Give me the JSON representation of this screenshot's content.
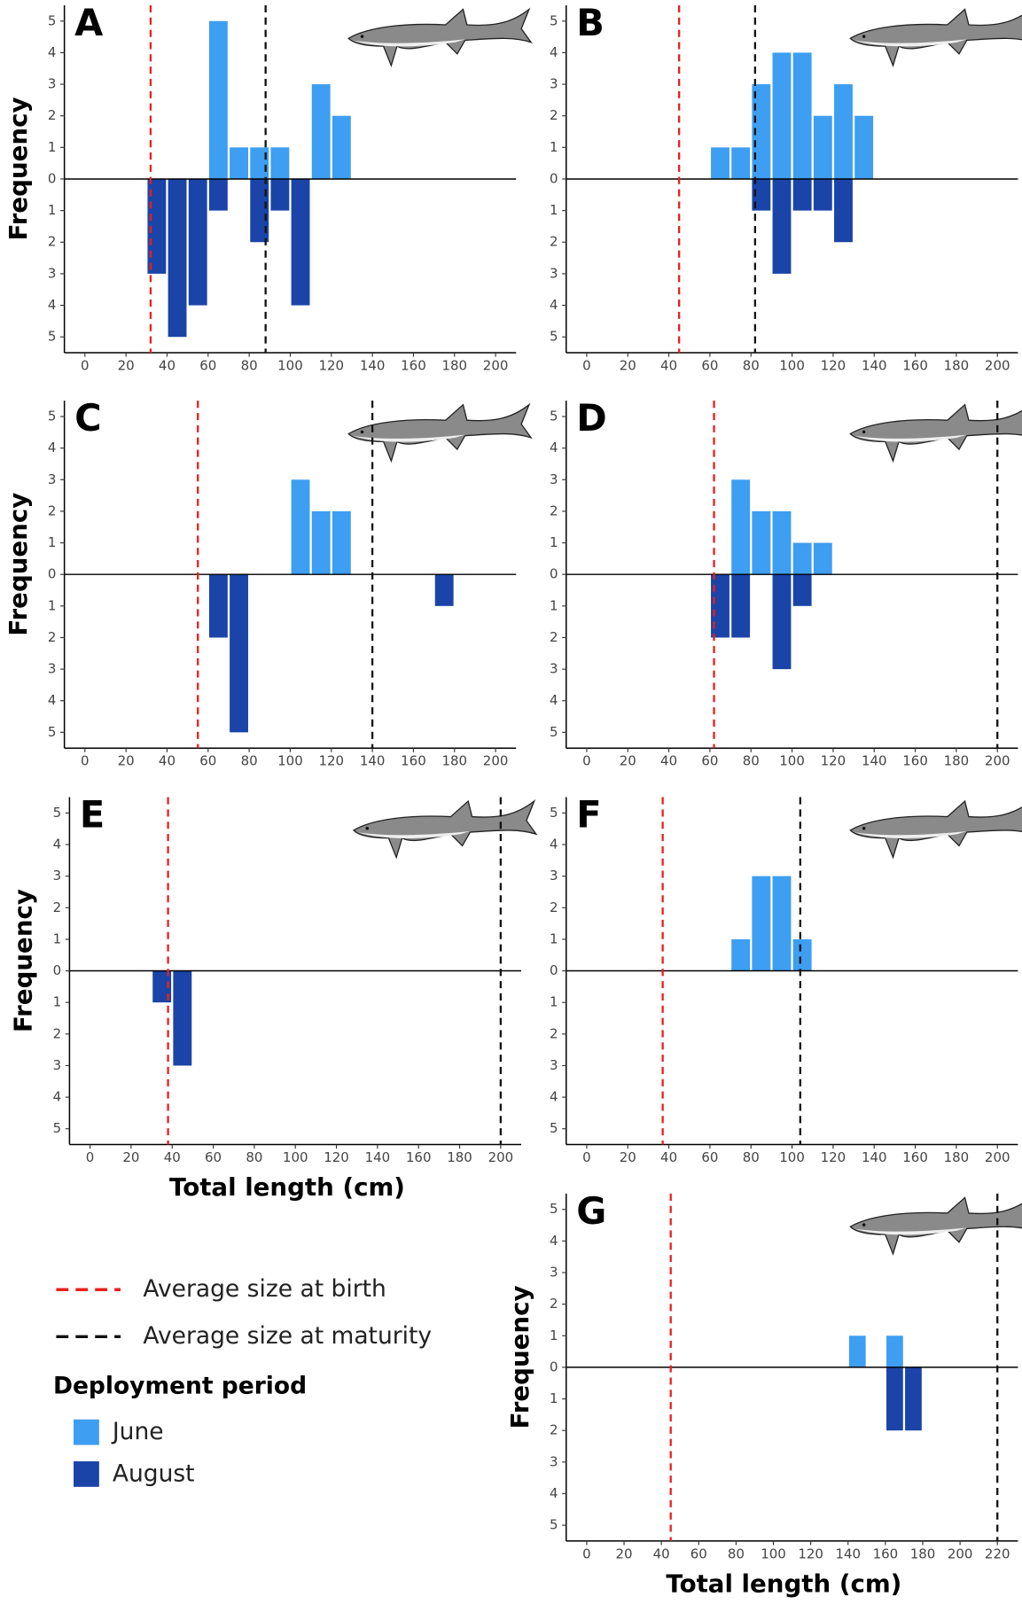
{
  "chart_data": [
    {
      "type": "histogram",
      "label": "A",
      "ylabel": "Frequency",
      "bins": [
        30,
        40,
        50,
        60,
        70,
        80,
        90,
        100,
        110,
        120,
        130
      ],
      "series": [
        {
          "name": "June",
          "color": "#3d9ef2",
          "values": [
            0,
            0,
            0,
            5,
            1,
            1,
            1,
            0,
            3,
            2
          ]
        },
        {
          "name": "August",
          "color": "#1a44a8",
          "values": [
            -3,
            -5,
            -4,
            -1,
            0,
            -2,
            -1,
            -4,
            0,
            0
          ]
        }
      ],
      "birth_size": 32,
      "maturity_size": 88,
      "xlim": [
        -10,
        210
      ],
      "xticks": [
        0,
        20,
        40,
        60,
        80,
        100,
        120,
        140,
        160,
        180,
        200
      ],
      "ylim": [
        -5.5,
        5.5
      ],
      "yticks": [
        {
          "value": -5,
          "label": "5"
        },
        {
          "value": -4,
          "label": "4"
        },
        {
          "value": -3,
          "label": "3"
        },
        {
          "value": -2,
          "label": "2"
        },
        {
          "value": -1,
          "label": "1"
        },
        0,
        1,
        2,
        3,
        4,
        5
      ]
    },
    {
      "type": "histogram",
      "label": "B",
      "bins": [
        60,
        70,
        80,
        90,
        100,
        110,
        120,
        130,
        140
      ],
      "series": [
        {
          "name": "June",
          "color": "#3d9ef2",
          "values": [
            1,
            1,
            3,
            4,
            4,
            2,
            3,
            2
          ]
        },
        {
          "name": "August",
          "color": "#1a44a8",
          "values": [
            0,
            0,
            -1,
            -3,
            -1,
            -1,
            -2,
            0
          ]
        }
      ],
      "birth_size": 45,
      "maturity_size": 82,
      "xlim": [
        -10,
        210
      ],
      "xticks": [
        0,
        20,
        40,
        60,
        80,
        100,
        120,
        140,
        160,
        180,
        200
      ],
      "ylim": [
        -5.5,
        5.5
      ],
      "yticks": [
        {
          "value": -5,
          "label": "5"
        },
        {
          "value": -4,
          "label": "4"
        },
        {
          "value": -3,
          "label": "3"
        },
        {
          "value": -2,
          "label": "2"
        },
        {
          "value": -1,
          "label": "1"
        },
        0,
        1,
        2,
        3,
        4,
        5
      ]
    },
    {
      "type": "histogram",
      "label": "C",
      "ylabel": "Frequency",
      "bins": [
        60,
        70,
        80,
        90,
        100,
        110,
        120,
        130,
        140,
        150,
        160,
        170,
        180
      ],
      "series": [
        {
          "name": "June",
          "color": "#3d9ef2",
          "values": [
            0,
            0,
            0,
            0,
            3,
            2,
            2,
            0,
            0,
            0,
            0,
            0
          ]
        },
        {
          "name": "August",
          "color": "#1a44a8",
          "values": [
            -2,
            -5,
            0,
            0,
            0,
            0,
            0,
            0,
            0,
            0,
            0,
            -1
          ]
        }
      ],
      "birth_size": 55,
      "maturity_size": 140,
      "xlim": [
        -10,
        210
      ],
      "xticks": [
        0,
        20,
        40,
        60,
        80,
        100,
        120,
        140,
        160,
        180,
        200
      ],
      "ylim": [
        -5.5,
        5.5
      ],
      "yticks": [
        {
          "value": -5,
          "label": "5"
        },
        {
          "value": -4,
          "label": "4"
        },
        {
          "value": -3,
          "label": "3"
        },
        {
          "value": -2,
          "label": "2"
        },
        {
          "value": -1,
          "label": "1"
        },
        0,
        1,
        2,
        3,
        4,
        5
      ]
    },
    {
      "type": "histogram",
      "label": "D",
      "bins": [
        60,
        70,
        80,
        90,
        100,
        110,
        120
      ],
      "series": [
        {
          "name": "June",
          "color": "#3d9ef2",
          "values": [
            0,
            3,
            2,
            2,
            1,
            1
          ]
        },
        {
          "name": "August",
          "color": "#1a44a8",
          "values": [
            -2,
            -2,
            0,
            -3,
            -1,
            0
          ]
        }
      ],
      "birth_size": 62,
      "maturity_size": 200,
      "xlim": [
        -10,
        210
      ],
      "xticks": [
        0,
        20,
        40,
        60,
        80,
        100,
        120,
        140,
        160,
        180,
        200
      ],
      "ylim": [
        -5.5,
        5.5
      ],
      "yticks": [
        {
          "value": -5,
          "label": "5"
        },
        {
          "value": -4,
          "label": "4"
        },
        {
          "value": -3,
          "label": "3"
        },
        {
          "value": -2,
          "label": "2"
        },
        {
          "value": -1,
          "label": "1"
        },
        0,
        1,
        2,
        3,
        4,
        5
      ]
    },
    {
      "type": "histogram",
      "label": "E",
      "ylabel": "Frequency",
      "xlabel": "Total length (cm)",
      "bins": [
        30,
        40,
        50
      ],
      "series": [
        {
          "name": "June",
          "color": "#3d9ef2",
          "values": [
            0,
            0
          ]
        },
        {
          "name": "August",
          "color": "#1a44a8",
          "values": [
            -1,
            -3
          ]
        }
      ],
      "birth_size": 38,
      "maturity_size": 200,
      "xlim": [
        -10,
        210
      ],
      "xticks": [
        0,
        20,
        40,
        60,
        80,
        100,
        120,
        140,
        160,
        180,
        200
      ],
      "ylim": [
        -5.5,
        5.5
      ],
      "yticks": [
        {
          "value": -5,
          "label": "5"
        },
        {
          "value": -4,
          "label": "4"
        },
        {
          "value": -3,
          "label": "3"
        },
        {
          "value": -2,
          "label": "2"
        },
        {
          "value": -1,
          "label": "1"
        },
        0,
        1,
        2,
        3,
        4,
        5
      ]
    },
    {
      "type": "histogram",
      "label": "F",
      "bins": [
        70,
        80,
        90,
        100,
        110
      ],
      "series": [
        {
          "name": "June",
          "color": "#3d9ef2",
          "values": [
            1,
            3,
            3,
            1
          ]
        },
        {
          "name": "August",
          "color": "#1a44a8",
          "values": [
            0,
            0,
            0,
            0
          ]
        }
      ],
      "birth_size": 37,
      "maturity_size": 104,
      "xlim": [
        -10,
        210
      ],
      "xticks": [
        0,
        20,
        40,
        60,
        80,
        100,
        120,
        140,
        160,
        180,
        200
      ],
      "ylim": [
        -5.5,
        5.5
      ],
      "yticks": [
        {
          "value": -5,
          "label": "5"
        },
        {
          "value": -4,
          "label": "4"
        },
        {
          "value": -3,
          "label": "3"
        },
        {
          "value": -2,
          "label": "2"
        },
        {
          "value": -1,
          "label": "1"
        },
        0,
        1,
        2,
        3,
        4,
        5
      ]
    },
    {
      "type": "histogram",
      "label": "G",
      "ylabel": "Frequency",
      "xlabel": "Total length (cm)",
      "bins": [
        140,
        150,
        160,
        170,
        180
      ],
      "series": [
        {
          "name": "June",
          "color": "#3d9ef2",
          "values": [
            1,
            0,
            1,
            0
          ]
        },
        {
          "name": "August",
          "color": "#1a44a8",
          "values": [
            0,
            0,
            -2,
            -2
          ]
        }
      ],
      "birth_size": 45,
      "maturity_size": 220,
      "xlim": [
        -11,
        231
      ],
      "xticks": [
        0,
        20,
        40,
        60,
        80,
        100,
        120,
        140,
        160,
        180,
        200,
        220
      ],
      "ylim": [
        -5.5,
        5.5
      ],
      "yticks": [
        {
          "value": -5,
          "label": "5"
        },
        {
          "value": -4,
          "label": "4"
        },
        {
          "value": -3,
          "label": "3"
        },
        {
          "value": -2,
          "label": "2"
        },
        {
          "value": -1,
          "label": "1"
        },
        0,
        1,
        2,
        3,
        4,
        5
      ]
    }
  ],
  "legend": {
    "lines": [
      {
        "name": "Average size at birth",
        "color": "#e8201e"
      },
      {
        "name": "Average size at maturity",
        "color": "#111111"
      }
    ],
    "title": "Deployment period"
  }
}
